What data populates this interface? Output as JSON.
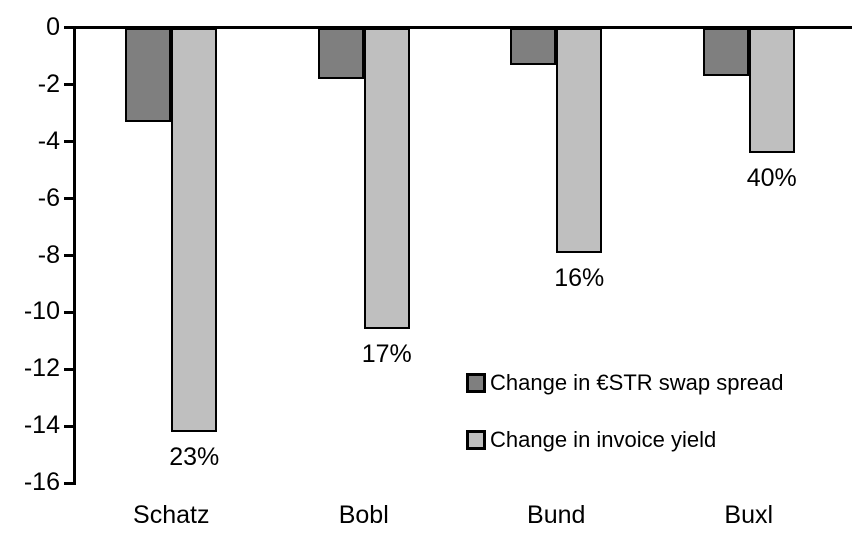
{
  "chart_data": {
    "type": "bar",
    "categories": [
      "Schatz",
      "Bobl",
      "Bund",
      "Buxl"
    ],
    "series": [
      {
        "name": "Change in €STR swap spread",
        "color": "#7F7F7F",
        "values": [
          -3.3,
          -1.8,
          -1.3,
          -1.7
        ]
      },
      {
        "name": "Change in invoice yield",
        "color": "#BFBFBF",
        "values": [
          -14.2,
          -10.6,
          -7.9,
          -4.4
        ]
      }
    ],
    "bar_labels": [
      "23%",
      "17%",
      "16%",
      "40%"
    ],
    "bar_labels_series": "Change in invoice yield",
    "ylim": [
      -16,
      0
    ],
    "yticks": [
      0,
      -2,
      -4,
      -6,
      -8,
      -10,
      -12,
      -14,
      -16
    ],
    "grid": false,
    "legend_position": "inside-center-right",
    "bar_outline_color": "#000000",
    "axis_color": "#000000",
    "background_color": "#FFFFFF",
    "text_color": "#000000"
  }
}
